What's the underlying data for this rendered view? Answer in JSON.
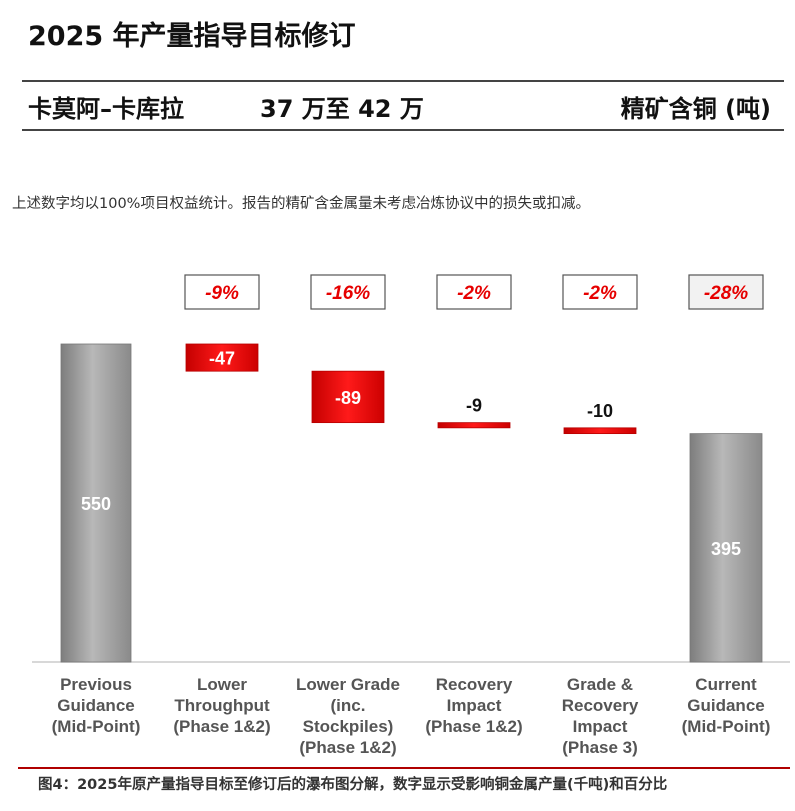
{
  "header": {
    "title": "2025 年产量指导目标修订",
    "mine": "卡莫阿–卡库拉",
    "range": "37 万至 42 万",
    "unit": "精矿含铜 (吨)"
  },
  "note": "上述数字均以100%项目权益统计。报告的精矿含金属量未考虑冶炼协议中的损失或扣减。",
  "caption": "图4：2025年原产量指导目标至修订后的瀑布图分解，数字显示受影响铜金属产量(千吨)和百分比",
  "colors": {
    "total_bar": "#9a9a9a",
    "decrease_bar": "#e60000",
    "percent_text": "#e60000",
    "axis": "#cccccc"
  },
  "chart_data": {
    "type": "bar",
    "subtype": "waterfall",
    "categories": [
      [
        "Previous",
        "Guidance",
        "(Mid-Point)"
      ],
      [
        "Lower",
        "Throughput",
        "(Phase 1&2)"
      ],
      [
        "Lower Grade",
        "(inc.",
        "Stockpiles)",
        "(Phase 1&2)"
      ],
      [
        "Recovery",
        "Impact",
        "(Phase 1&2)"
      ],
      [
        "Grade &",
        "Recovery",
        "Impact",
        "(Phase 3)"
      ],
      [
        "Current",
        "Guidance",
        "(Mid-Point)"
      ]
    ],
    "values": [
      550,
      -47,
      -89,
      -9,
      -10,
      395
    ],
    "value_labels": [
      "550",
      "-47",
      "-89",
      "-9",
      "-10",
      "395"
    ],
    "kinds": [
      "total",
      "delta",
      "delta",
      "delta",
      "delta",
      "total"
    ],
    "percent_labels": [
      "",
      "-9%",
      "-16%",
      "-2%",
      "-2%",
      "-28%"
    ],
    "ylim": [
      0,
      600
    ],
    "grid": false,
    "legend": "none"
  }
}
